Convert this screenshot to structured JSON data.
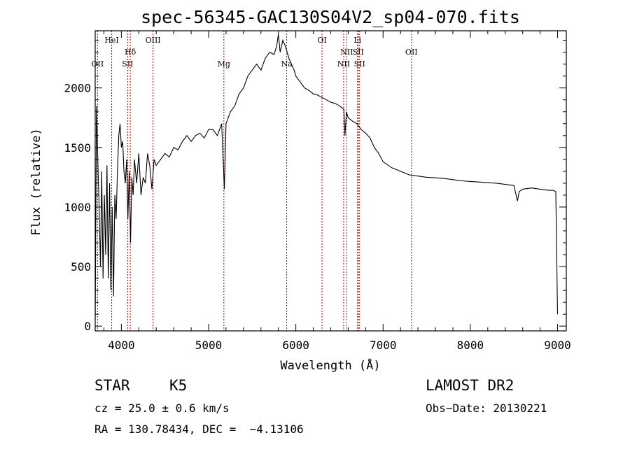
{
  "chart_data": {
    "type": "line",
    "title": "spec-56345-GAC130S04V2_sp04-070.fits",
    "xlabel": "Wavelength (Å)",
    "ylabel": "Flux (relative)",
    "xlim": [
      3700,
      9100
    ],
    "ylim": [
      -40,
      2480
    ],
    "xticks": [
      4000,
      5000,
      6000,
      7000,
      8000,
      9000
    ],
    "yticks": [
      0,
      500,
      1000,
      1500,
      2000
    ],
    "series_color": "#000000",
    "line_color": "#b00000",
    "series": [
      {
        "x": [
          3700,
          3715,
          3730,
          3745,
          3760,
          3775,
          3790,
          3805,
          3820,
          3835,
          3850,
          3865,
          3880,
          3895,
          3910,
          3925,
          3940,
          3955,
          3970,
          3985,
          4000,
          4015,
          4030,
          4045,
          4060,
          4075,
          4090,
          4105,
          4120,
          4135,
          4150,
          4175,
          4200,
          4225,
          4250,
          4275,
          4300,
          4325,
          4350,
          4375,
          4400,
          4450,
          4500,
          4550,
          4600,
          4650,
          4700,
          4750,
          4800,
          4850,
          4900,
          4950,
          5000,
          5050,
          5100,
          5150,
          5180,
          5200,
          5250,
          5300,
          5350,
          5400,
          5450,
          5500,
          5550,
          5600,
          5650,
          5700,
          5750,
          5780,
          5800,
          5820,
          5850,
          5880,
          5900,
          5920,
          5950,
          5980,
          6000,
          6050,
          6100,
          6150,
          6200,
          6250,
          6300,
          6350,
          6400,
          6450,
          6500,
          6550,
          6563,
          6580,
          6600,
          6650,
          6700,
          6750,
          6800,
          6850,
          6900,
          6950,
          7000,
          7100,
          7200,
          7300,
          7400,
          7500,
          7600,
          7700,
          7800,
          7900,
          8000,
          8100,
          8200,
          8300,
          8400,
          8500,
          8540,
          8560,
          8600,
          8700,
          8800,
          8900,
          8950,
          8980,
          9000
        ],
        "y": [
          50,
          1850,
          1400,
          1000,
          500,
          1300,
          400,
          1100,
          600,
          1350,
          400,
          1200,
          300,
          1000,
          250,
          1100,
          900,
          1300,
          1600,
          1700,
          1500,
          1550,
          1300,
          1200,
          1400,
          900,
          1300,
          700,
          1250,
          1100,
          1400,
          1200,
          1450,
          1100,
          1250,
          1200,
          1450,
          1350,
          1150,
          1400,
          1350,
          1400,
          1450,
          1420,
          1500,
          1480,
          1550,
          1600,
          1550,
          1600,
          1620,
          1580,
          1650,
          1650,
          1600,
          1700,
          1150,
          1700,
          1800,
          1850,
          1950,
          2000,
          2100,
          2150,
          2200,
          2150,
          2250,
          2300,
          2280,
          2350,
          2450,
          2300,
          2400,
          2350,
          2300,
          2250,
          2200,
          2150,
          2100,
          2050,
          2000,
          1980,
          1950,
          1940,
          1920,
          1900,
          1880,
          1870,
          1850,
          1820,
          1600,
          1800,
          1750,
          1720,
          1700,
          1650,
          1620,
          1580,
          1500,
          1450,
          1380,
          1330,
          1300,
          1270,
          1260,
          1250,
          1245,
          1240,
          1230,
          1220,
          1215,
          1210,
          1205,
          1200,
          1190,
          1180,
          1050,
          1130,
          1150,
          1160,
          1150,
          1140,
          1140,
          1130,
          100
        ]
      }
    ],
    "lines": [
      {
        "x": 3727,
        "label": "OII",
        "row": 3
      },
      {
        "x": 3889,
        "label": "HeI",
        "row": 1
      },
      {
        "x": 4072,
        "label": "SII",
        "row": 3
      },
      {
        "x": 4102,
        "label": "Hδ",
        "row": 2
      },
      {
        "x": 4363,
        "label": "OIII",
        "row": 1
      },
      {
        "x": 5175,
        "label": "Mg",
        "row": 3
      },
      {
        "x": 5895,
        "label": "Na",
        "row": 3
      },
      {
        "x": 6300,
        "label": "OI",
        "row": 1
      },
      {
        "x": 6548,
        "label": "NII",
        "row": 3
      },
      {
        "x": 6583,
        "label": "NII",
        "row": 2
      },
      {
        "x": 6707,
        "label": "Li",
        "row": 1
      },
      {
        "x": 6716,
        "label": "SII",
        "row": 2
      },
      {
        "x": 6731,
        "label": "SII",
        "row": 3
      },
      {
        "x": 7325,
        "label": "OII",
        "row": 2
      }
    ]
  },
  "footer": {
    "class_label": "STAR",
    "subclass": "K5",
    "cz": "cz = 25.0 ± 0.6 km/s",
    "coords": "RA = 130.78434, DEC =  −4.13106",
    "survey": "LAMOST DR2",
    "obs_date": "Obs−Date: 20130221"
  }
}
